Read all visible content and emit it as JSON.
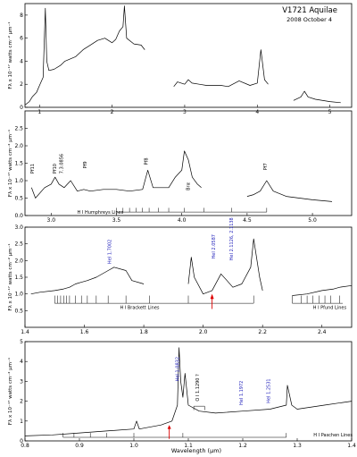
{
  "figure": {
    "title": "V1721 Aquilae",
    "subtitle": "2008 October 4",
    "xlabel": "Wavelength (μm)"
  },
  "chart_data": [
    {
      "type": "line",
      "ylabel": "Fλ x 10⁻¹⁷ watts cm⁻² μm⁻¹",
      "xlim": [
        0.8,
        5.3
      ],
      "ylim": [
        0,
        9
      ],
      "xticks": [
        "1",
        "2",
        "3",
        "4",
        "5"
      ],
      "xtick_values": [
        1,
        2,
        3,
        4,
        5
      ],
      "yticks": [
        "0",
        "2",
        "4",
        "6",
        "8"
      ],
      "ytick_values": [
        0,
        2,
        4,
        6,
        8
      ],
      "series": [
        {
          "x": [
            0.8,
            0.86,
            0.9,
            0.96,
            1.0,
            1.05,
            1.08,
            1.1,
            1.13,
            1.2,
            1.28,
            1.3,
            1.35,
            1.5,
            1.6,
            1.7,
            1.8,
            1.9,
            2.0,
            2.05,
            2.1,
            2.15,
            2.17,
            2.2,
            2.3,
            2.4,
            2.45
          ],
          "y": [
            0.2,
            0.5,
            0.9,
            1.3,
            1.9,
            2.6,
            8.6,
            4.0,
            3.2,
            3.3,
            3.6,
            3.7,
            4.0,
            4.4,
            5.0,
            5.4,
            5.8,
            6.0,
            5.6,
            5.9,
            6.6,
            7.0,
            8.8,
            6.0,
            5.5,
            5.4,
            5.0
          ]
        },
        {
          "x": [
            2.85,
            2.9,
            3.0,
            3.05,
            3.1,
            3.2,
            3.3,
            3.5,
            3.6,
            3.75,
            3.9,
            4.0,
            4.05,
            4.1,
            4.15
          ],
          "y": [
            1.8,
            2.2,
            2.0,
            2.4,
            2.1,
            2.0,
            1.9,
            1.9,
            1.8,
            2.3,
            1.9,
            2.1,
            5.0,
            2.4,
            2.0
          ]
        },
        {
          "x": [
            4.5,
            4.6,
            4.65,
            4.7,
            4.8,
            5.0,
            5.15
          ],
          "y": [
            0.6,
            0.9,
            1.4,
            0.9,
            0.7,
            0.5,
            0.4
          ]
        }
      ]
    },
    {
      "type": "line",
      "ylabel": "Fλ x 10⁻¹⁷ watts cm⁻² μm⁻¹",
      "xlim": [
        2.8,
        5.3
      ],
      "ylim": [
        0,
        3
      ],
      "xticks": [
        "3.0",
        "3.5",
        "4.0",
        "4.5",
        "5.0"
      ],
      "xtick_values": [
        3.0,
        3.5,
        4.0,
        4.5,
        5.0
      ],
      "yticks": [
        "0.0",
        "0.5",
        "1.0",
        "1.5",
        "2.0",
        "2.5"
      ],
      "ytick_values": [
        0.0,
        0.5,
        1.0,
        1.5,
        2.0,
        2.5
      ],
      "series": [
        {
          "x": [
            2.85,
            2.88,
            2.95,
            3.0,
            3.03,
            3.06,
            3.1,
            3.15,
            3.2,
            3.25,
            3.3,
            3.4,
            3.5,
            3.6,
            3.7,
            3.74,
            3.78,
            3.9,
            3.95,
            4.0,
            4.02,
            4.05,
            4.08,
            4.12,
            4.15
          ],
          "y": [
            0.8,
            0.5,
            0.8,
            0.9,
            1.1,
            0.9,
            0.8,
            1.0,
            0.7,
            0.75,
            0.7,
            0.75,
            0.75,
            0.7,
            0.75,
            1.3,
            0.8,
            0.8,
            1.1,
            1.3,
            1.85,
            1.6,
            1.1,
            0.9,
            0.8
          ]
        },
        {
          "x": [
            4.5,
            4.55,
            4.6,
            4.65,
            4.7,
            4.8,
            5.0,
            5.15
          ],
          "y": [
            0.55,
            0.6,
            0.7,
            1.0,
            0.7,
            0.55,
            0.45,
            0.4
          ]
        }
      ],
      "annotations": [
        "Pf11",
        "Pf10",
        "7.3.0856",
        "Pf9",
        "Pf8",
        "Brα",
        "Pf7"
      ],
      "line_series_label": "H I Humphreys Lines"
    },
    {
      "type": "line",
      "ylabel": "Fλ x 10⁻¹⁷ watts cm⁻² μm⁻¹",
      "xlim": [
        1.4,
        2.5
      ],
      "ylim": [
        0,
        3
      ],
      "xticks": [
        "1.4",
        "1.6",
        "1.8",
        "2.0",
        "2.2",
        "2.4"
      ],
      "xtick_values": [
        1.4,
        1.6,
        1.8,
        2.0,
        2.2,
        2.4
      ],
      "yticks": [
        "0.5",
        "1.0",
        "1.5",
        "2.0",
        "2.5",
        "3.0"
      ],
      "ytick_values": [
        0.5,
        1.0,
        1.5,
        2.0,
        2.5,
        3.0
      ],
      "series": [
        {
          "x": [
            1.42,
            1.45,
            1.5,
            1.53,
            1.55,
            1.57,
            1.59,
            1.61,
            1.64,
            1.68,
            1.7,
            1.74,
            1.76,
            1.8
          ],
          "y": [
            1.0,
            1.05,
            1.1,
            1.15,
            1.2,
            1.3,
            1.35,
            1.4,
            1.5,
            1.7,
            1.8,
            1.7,
            1.4,
            1.3
          ]
        },
        {
          "x": [
            1.95,
            1.96,
            1.97,
            2.0,
            2.03,
            2.06,
            2.08,
            2.1,
            2.13,
            2.16,
            2.17,
            2.19,
            2.2
          ],
          "y": [
            1.3,
            2.1,
            1.5,
            1.0,
            1.1,
            1.6,
            1.4,
            1.2,
            1.3,
            1.8,
            2.65,
            1.5,
            1.1
          ]
        },
        {
          "x": [
            2.3,
            2.35,
            2.4,
            2.44,
            2.46,
            2.5
          ],
          "y": [
            0.95,
            1.0,
            1.1,
            1.15,
            1.2,
            1.25
          ]
        }
      ],
      "annotations": [
        "HeI 1.7002",
        "HeI 2.0587",
        "HeI 2.1126, 2.1138"
      ],
      "line_series_labels": [
        "H I Brackett Lines",
        "H I Pfund Lines"
      ]
    },
    {
      "type": "line",
      "ylabel": "Fλ x 10⁻¹⁷ watts cm⁻² μm⁻¹",
      "xlim": [
        0.8,
        1.4
      ],
      "ylim": [
        0,
        5
      ],
      "xticks": [
        "0.8",
        "0.9",
        "1.0",
        "1.1",
        "1.2",
        "1.3",
        "1.4"
      ],
      "xtick_values": [
        0.8,
        0.9,
        1.0,
        1.1,
        1.2,
        1.3,
        1.4
      ],
      "yticks": [
        "0",
        "1",
        "2",
        "3",
        "4",
        "5"
      ],
      "ytick_values": [
        0,
        1,
        2,
        3,
        4,
        5
      ],
      "series": [
        {
          "x": [
            0.8,
            0.85,
            0.9,
            0.95,
            1.0,
            1.005,
            1.01,
            1.05,
            1.07,
            1.08,
            1.083,
            1.086,
            1.09,
            1.094,
            1.1,
            1.12,
            1.15,
            1.2,
            1.25,
            1.28,
            1.282,
            1.29,
            1.3,
            1.35,
            1.4
          ],
          "y": [
            0.25,
            0.3,
            0.4,
            0.5,
            0.6,
            1.0,
            0.6,
            0.8,
            1.0,
            1.8,
            4.7,
            3.0,
            2.2,
            3.4,
            1.8,
            1.5,
            1.4,
            1.5,
            1.6,
            1.8,
            2.8,
            1.8,
            1.6,
            1.8,
            2.0
          ]
        }
      ],
      "annotations": [
        "HeI 1.0832",
        "O I 1.1290 ?",
        "HeI 1.1972",
        "HeI 1.2531"
      ],
      "line_series_label": "H I Paschen Lines"
    }
  ]
}
